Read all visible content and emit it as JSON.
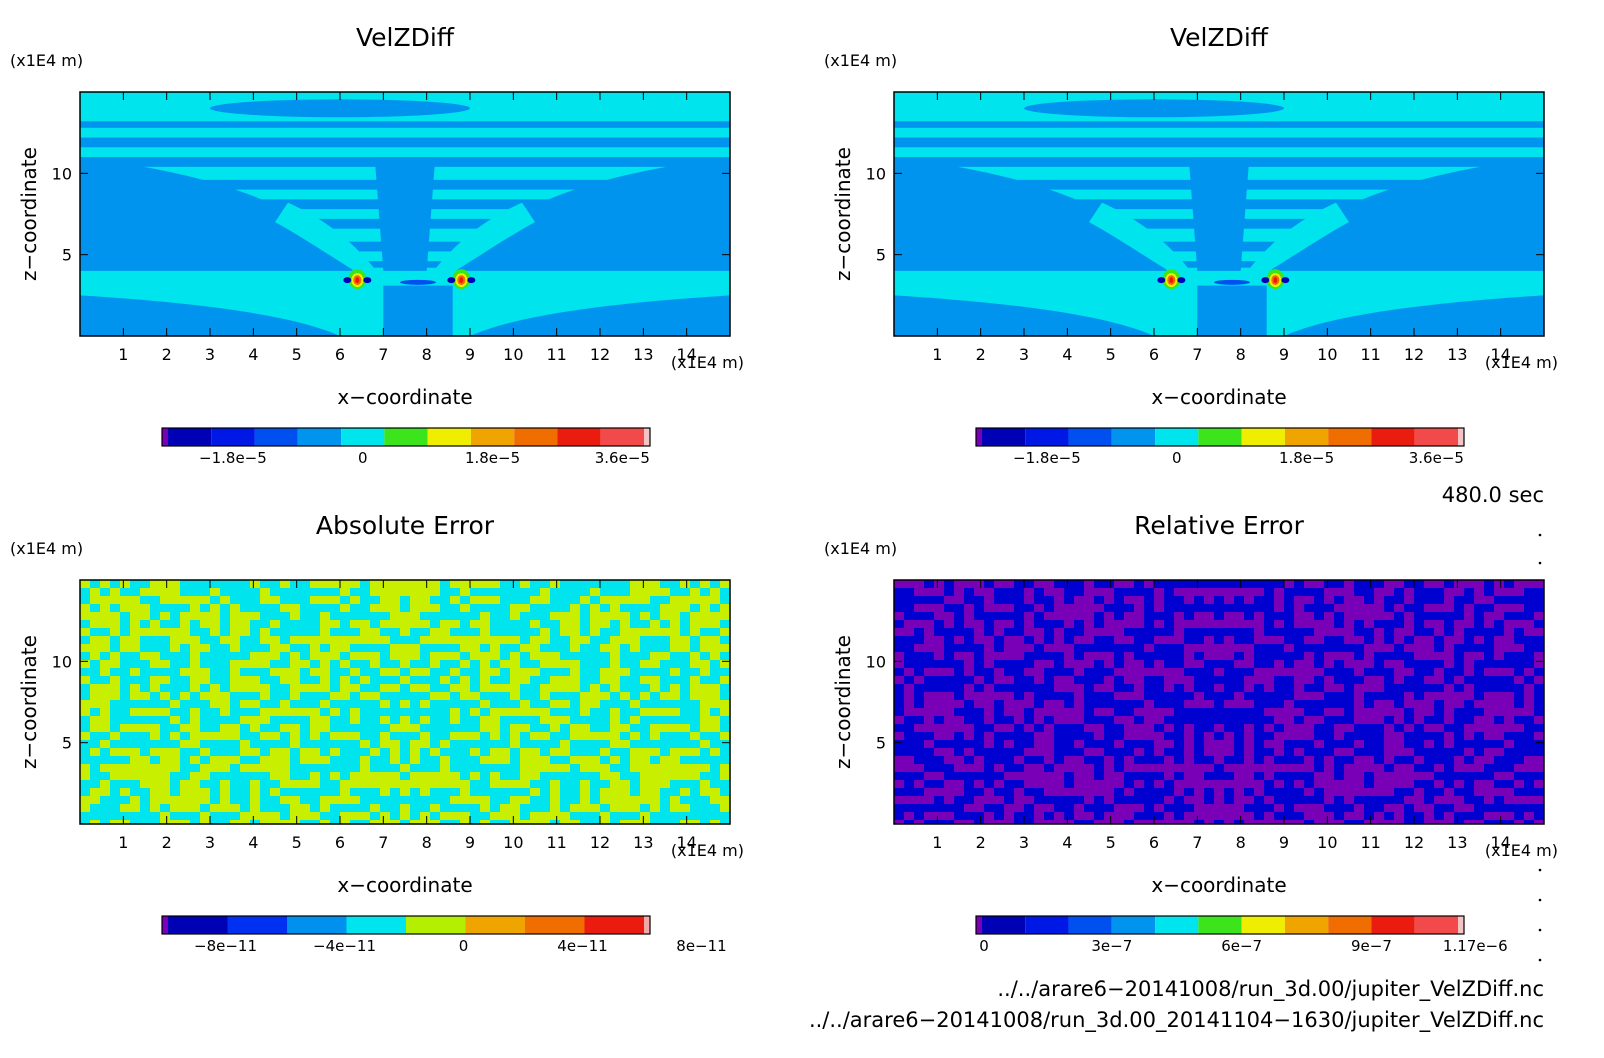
{
  "panels": [
    {
      "title": "VelZDiff",
      "unit_label_z": "(x1E4 m)",
      "unit_label_x": "(x1E4 m)",
      "xlabel": "x−coordinate",
      "ylabel": "z−coordinate",
      "x_ticks": [
        "1",
        "2",
        "3",
        "4",
        "5",
        "6",
        "7",
        "8",
        "9",
        "10",
        "11",
        "12",
        "13",
        "14"
      ],
      "z_ticks": [
        "5",
        "10"
      ],
      "pattern": "velocity",
      "colorbar": {
        "colors": [
          "#7a00b8",
          "#0000b4",
          "#0018e6",
          "#0050f0",
          "#0094ee",
          "#00e4ee",
          "#3ce41c",
          "#f0ee00",
          "#f0a400",
          "#f06e00",
          "#ea1c10",
          "#f24a4a",
          "#f4c4c4"
        ],
        "tick_labels": [
          "−1.8e−5",
          "0",
          "1.8e−5",
          "3.6e−5"
        ]
      }
    },
    {
      "title": "VelZDiff",
      "unit_label_z": "(x1E4 m)",
      "unit_label_x": "(x1E4 m)",
      "xlabel": "x−coordinate",
      "ylabel": "z−coordinate",
      "x_ticks": [
        "1",
        "2",
        "3",
        "4",
        "5",
        "6",
        "7",
        "8",
        "9",
        "10",
        "11",
        "12",
        "13",
        "14"
      ],
      "z_ticks": [
        "5",
        "10"
      ],
      "pattern": "velocity",
      "colorbar": {
        "colors": [
          "#7a00b8",
          "#0000b4",
          "#0018e6",
          "#0050f0",
          "#0094ee",
          "#00e4ee",
          "#3ce41c",
          "#f0ee00",
          "#f0a400",
          "#f06e00",
          "#ea1c10",
          "#f24a4a",
          "#f4c4c4"
        ],
        "tick_labels": [
          "−1.8e−5",
          "0",
          "1.8e−5",
          "3.6e−5"
        ]
      }
    },
    {
      "title": "Absolute Error",
      "unit_label_z": "(x1E4 m)",
      "unit_label_x": "(x1E4 m)",
      "xlabel": "x−coordinate",
      "ylabel": "z−coordinate",
      "x_ticks": [
        "1",
        "2",
        "3",
        "4",
        "5",
        "6",
        "7",
        "8",
        "9",
        "10",
        "11",
        "12",
        "13",
        "14"
      ],
      "z_ticks": [
        "5",
        "10"
      ],
      "pattern": "noise_abs",
      "colorbar": {
        "colors": [
          "#7a00b8",
          "#0000b4",
          "#0030f0",
          "#0090ee",
          "#00e4ee",
          "#b4ee00",
          "#f0a400",
          "#f06e00",
          "#ea1c10",
          "#f4a8a8"
        ],
        "tick_labels": [
          "−8e−11",
          "−4e−11",
          "0",
          "4e−11",
          "8e−11"
        ]
      }
    },
    {
      "title": "Relative Error",
      "unit_label_z": "(x1E4 m)",
      "unit_label_x": "(x1E4 m)",
      "xlabel": "x−coordinate",
      "ylabel": "z−coordinate",
      "x_ticks": [
        "1",
        "2",
        "3",
        "4",
        "5",
        "6",
        "7",
        "8",
        "9",
        "10",
        "11",
        "12",
        "13",
        "14"
      ],
      "z_ticks": [
        "5",
        "10"
      ],
      "pattern": "noise_rel",
      "colorbar": {
        "colors": [
          "#7a00b8",
          "#0000b4",
          "#0018e6",
          "#0050f0",
          "#0094ee",
          "#00e4ee",
          "#3ce41c",
          "#f0ee00",
          "#f0a400",
          "#f06e00",
          "#ea1c10",
          "#f24a4a",
          "#f4c4c4"
        ],
        "tick_labels": [
          "0",
          "3e−7",
          "6e−7",
          "9e−7",
          "1.17e−6"
        ]
      }
    }
  ],
  "time_label": "480.0 sec",
  "file_paths": [
    "../../arare6−20141008/run_3d.00/jupiter_VelZDiff.nc",
    "../../arare6−20141008/run_3d.00_20141104−1630/jupiter_VelZDiff.nc"
  ],
  "chart_data": [
    {
      "type": "heatmap",
      "title": "VelZDiff",
      "xlabel": "x−coordinate",
      "ylabel": "z−coordinate",
      "x_unit": "(x1E4 m)",
      "z_unit": "(x1E4 m)",
      "xlim": [
        0,
        15
      ],
      "zlim": [
        0,
        15
      ],
      "x_ticks": [
        1,
        2,
        3,
        4,
        5,
        6,
        7,
        8,
        9,
        10,
        11,
        12,
        13,
        14
      ],
      "z_ticks": [
        5,
        10
      ],
      "colorbar_ticks": [
        -1.8e-05,
        0,
        1.8e-05,
        3.6e-05
      ]
    },
    {
      "type": "heatmap",
      "title": "VelZDiff",
      "xlabel": "x−coordinate",
      "ylabel": "z−coordinate",
      "x_unit": "(x1E4 m)",
      "z_unit": "(x1E4 m)",
      "xlim": [
        0,
        15
      ],
      "zlim": [
        0,
        15
      ],
      "x_ticks": [
        1,
        2,
        3,
        4,
        5,
        6,
        7,
        8,
        9,
        10,
        11,
        12,
        13,
        14
      ],
      "z_ticks": [
        5,
        10
      ],
      "colorbar_ticks": [
        -1.8e-05,
        0,
        1.8e-05,
        3.6e-05
      ]
    },
    {
      "type": "heatmap",
      "title": "Absolute Error",
      "xlabel": "x−coordinate",
      "ylabel": "z−coordinate",
      "x_unit": "(x1E4 m)",
      "z_unit": "(x1E4 m)",
      "xlim": [
        0,
        15
      ],
      "zlim": [
        0,
        15
      ],
      "x_ticks": [
        1,
        2,
        3,
        4,
        5,
        6,
        7,
        8,
        9,
        10,
        11,
        12,
        13,
        14
      ],
      "z_ticks": [
        5,
        10
      ],
      "colorbar_ticks": [
        -8e-11,
        -4e-11,
        0,
        4e-11,
        8e-11
      ]
    },
    {
      "type": "heatmap",
      "title": "Relative Error",
      "xlabel": "x−coordinate",
      "ylabel": "z−coordinate",
      "x_unit": "(x1E4 m)",
      "z_unit": "(x1E4 m)",
      "xlim": [
        0,
        15
      ],
      "zlim": [
        0,
        15
      ],
      "x_ticks": [
        1,
        2,
        3,
        4,
        5,
        6,
        7,
        8,
        9,
        10,
        11,
        12,
        13,
        14
      ],
      "z_ticks": [
        5,
        10
      ],
      "colorbar_ticks": [
        0,
        3e-07,
        6e-07,
        9e-07,
        1.17e-06
      ]
    }
  ]
}
